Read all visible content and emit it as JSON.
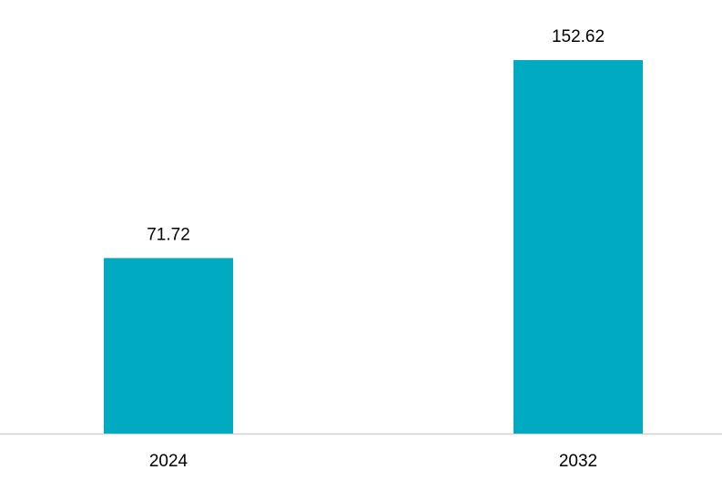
{
  "chart_data": {
    "type": "bar",
    "categories": [
      "2024",
      "2032"
    ],
    "values": [
      71.72,
      152.62
    ],
    "color": "#00abc2"
  }
}
